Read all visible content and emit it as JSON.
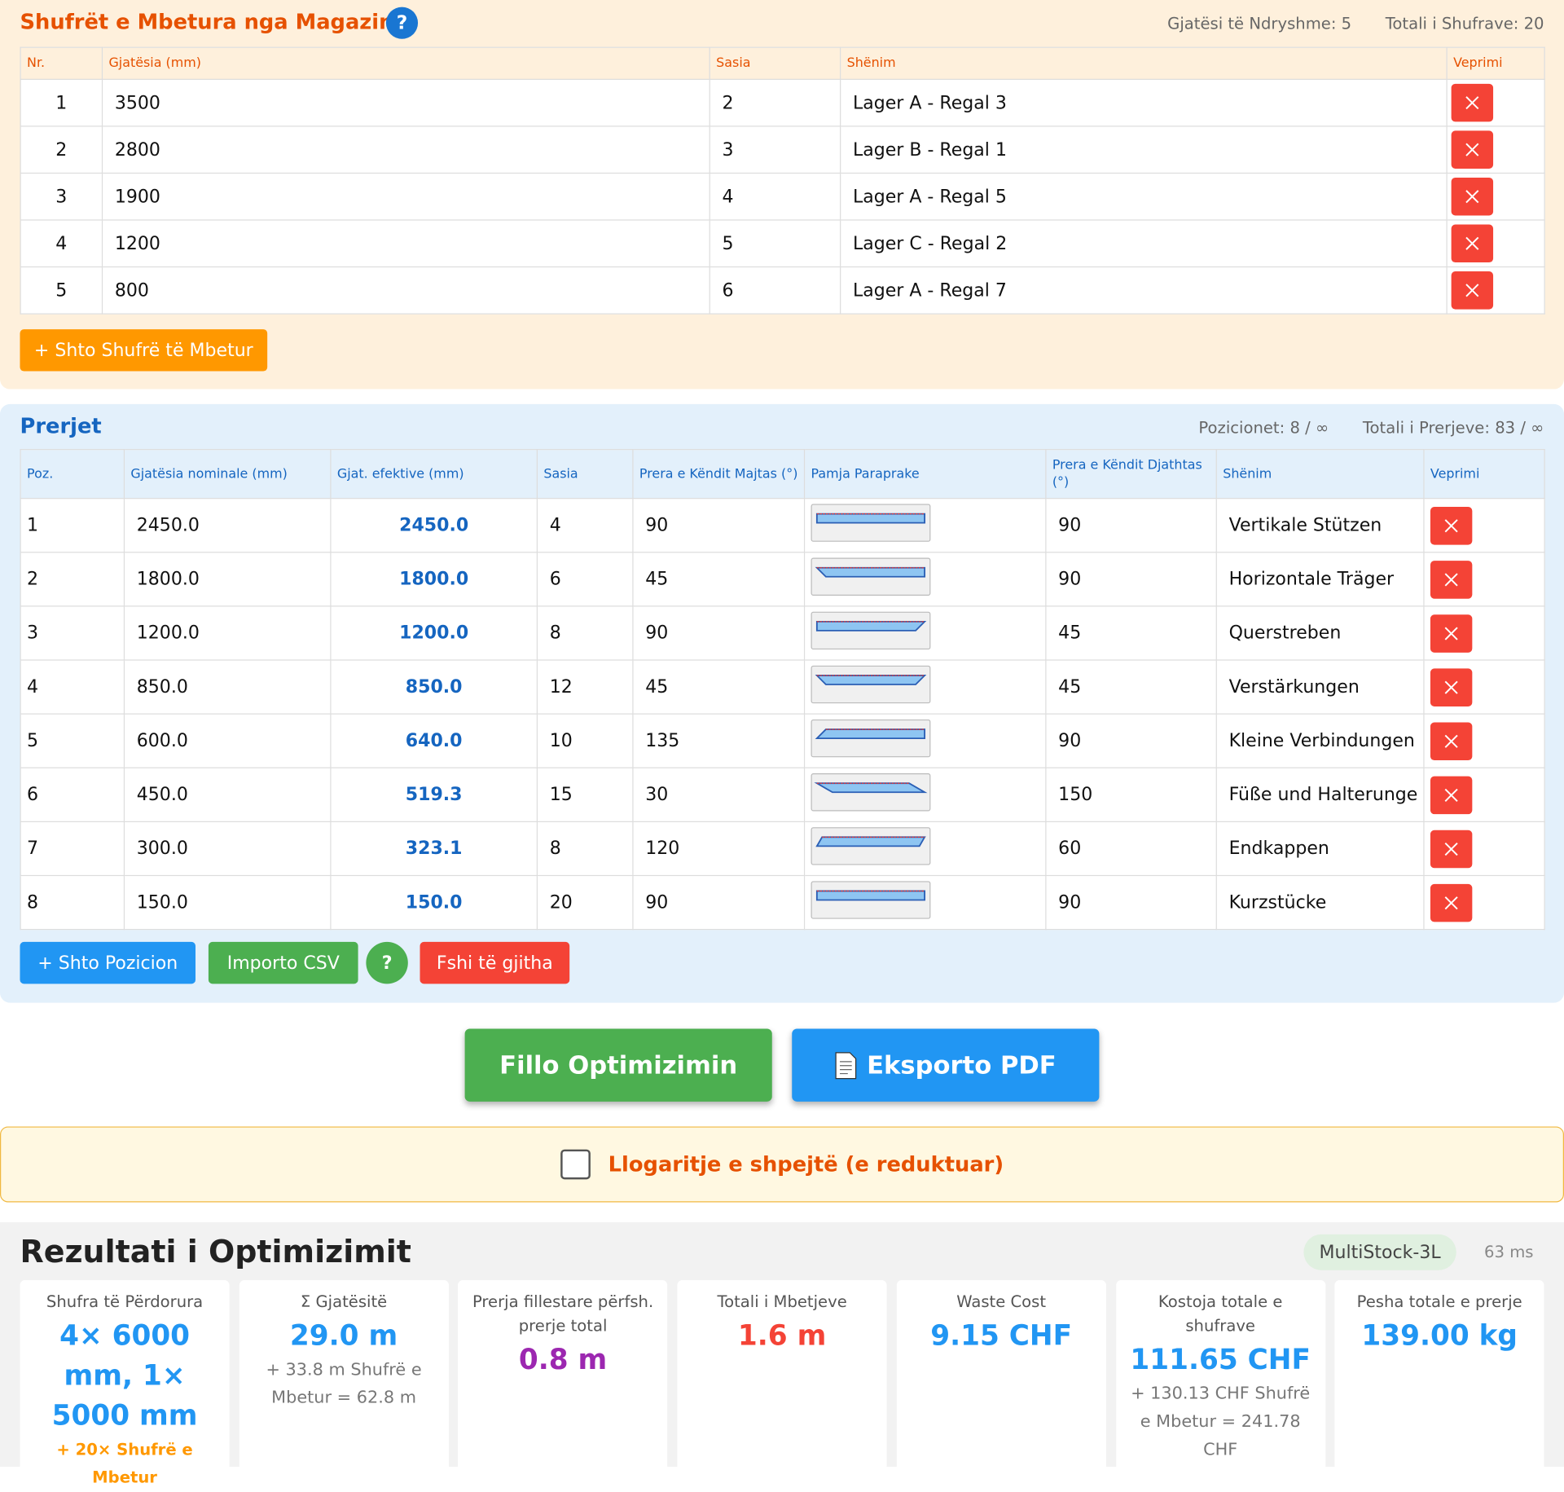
{
  "stock": {
    "title": "Shufrët e Mbetura nga Magazina",
    "help": "?",
    "stats": [
      "Gjatësi të Ndryshme: 5",
      "Totali i Shufrave: 20"
    ],
    "columns": [
      "Nr.",
      "Gjatësia (mm)",
      "Sasia",
      "Shënim",
      "Veprimi"
    ],
    "rows": [
      [
        "1",
        "3500",
        "2",
        "Lager A - Regal 3"
      ],
      [
        "2",
        "2800",
        "3",
        "Lager B - Regal 1"
      ],
      [
        "3",
        "1900",
        "4",
        "Lager A - Regal 5"
      ],
      [
        "4",
        "1200",
        "5",
        "Lager C - Regal 2"
      ],
      [
        "5",
        "800",
        "6",
        "Lager A - Regal 7"
      ]
    ],
    "add_button": "+ Shto Shufrë të Mbetur"
  },
  "cuts": {
    "title": "Prerjet",
    "stats": [
      "Pozicionet: 8 / ∞",
      "Totali i Prerjeve: 83 / ∞"
    ],
    "columns": [
      "Poz.",
      "Gjatësia nominale (mm)",
      "Gjat. efektive (mm)",
      "Sasia",
      "Prera e Këndit Majtas (°)",
      "Pamja Paraprake",
      "Prera e Këndit Djathtas (°)",
      "Shënim",
      "Veprimi"
    ],
    "rows": [
      [
        "1",
        "2450.0",
        "2450.0",
        "4",
        "90",
        "90",
        "Vertikale Stützen"
      ],
      [
        "2",
        "1800.0",
        "1800.0",
        "6",
        "45",
        "90",
        "Horizontale Träger"
      ],
      [
        "3",
        "1200.0",
        "1200.0",
        "8",
        "90",
        "45",
        "Querstreben"
      ],
      [
        "4",
        "850.0",
        "850.0",
        "12",
        "45",
        "45",
        "Verstärkungen"
      ],
      [
        "5",
        "600.0",
        "640.0",
        "10",
        "135",
        "90",
        "Kleine Verbindungen"
      ],
      [
        "6",
        "450.0",
        "519.3",
        "15",
        "30",
        "150",
        "Füße und Halterunge"
      ],
      [
        "7",
        "300.0",
        "323.1",
        "8",
        "120",
        "60",
        "Endkappen"
      ],
      [
        "8",
        "150.0",
        "150.0",
        "20",
        "90",
        "90",
        "Kurzstücke"
      ]
    ],
    "buttons": [
      "+ Shto Pozicion",
      "Importo CSV",
      "?",
      "Fshi të gjitha"
    ]
  },
  "actions": {
    "optimize": "Fillo Optimizimin",
    "export": "Eksporto PDF"
  },
  "quick": {
    "label": "Llogaritje e shpejtë (e reduktuar)"
  },
  "results": {
    "title": "Rezultati i Optimizimit",
    "algorithm": "MultiStock-3L",
    "time": "63 ms",
    "cards": [
      {
        "label": "Shufra të Përdorura",
        "value": "4× 6000 mm, 1× 5000 mm",
        "extra": "+ 20× Shufrë e Mbetur"
      },
      {
        "label": "Σ Gjatësitë",
        "value": "29.0 m",
        "extra": "+ 33.8 m Shufrë e Mbetur = 62.8 m"
      },
      {
        "label": "Prerja fillestare përfsh. prerje total",
        "value": "0.8 m"
      },
      {
        "label": "Totali i Mbetjeve",
        "value": "1.6 m"
      },
      {
        "label": "Waste Cost",
        "value": "9.15 CHF"
      },
      {
        "label": "Kostoja totale e shufrave",
        "value": "111.65 CHF",
        "extra": "+ 130.13 CHF Shufrë e Mbetur = 241.78 CHF"
      },
      {
        "label": "Pesha totale e prerje",
        "value": "139.00 kg"
      }
    ]
  }
}
